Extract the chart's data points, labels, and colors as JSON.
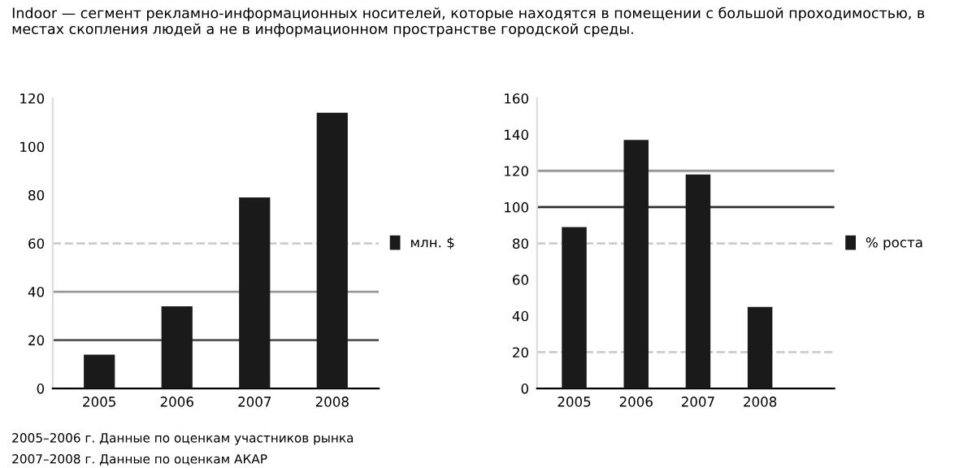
{
  "chart_data": [
    {
      "type": "bar",
      "title": "Indoor — сегмент рекламно-информационных носителей, которые находятся в помещении с большой проходимостью, в местах скопления людей а не в информационном пространстве городской среды.",
      "categories": [
        "2005",
        "2006",
        "2007",
        "2008"
      ],
      "series": [
        {
          "name": "млн. $",
          "color": "#1a1a1a",
          "values": [
            14,
            34,
            79,
            114
          ]
        }
      ],
      "ylim": [
        0,
        120
      ],
      "yticks": [
        0,
        20,
        40,
        60,
        80,
        100,
        120
      ],
      "legend": "right",
      "grid": false,
      "ref_lines": [
        {
          "axis": "y",
          "value": 20,
          "color": "#555555",
          "line_style": "solid"
        },
        {
          "axis": "y",
          "value": 40,
          "color": "#999999",
          "line_style": "solid"
        },
        {
          "axis": "y",
          "value": 60,
          "color": "#cccccc",
          "line_style": "dashed"
        }
      ],
      "annotations": [
        "2005–2006 г. Данные по оценкам участников рынка",
        "2007–2008 г. Данные по оценкам АКАР"
      ]
    },
    {
      "type": "bar",
      "categories": [
        "2005",
        "2006",
        "2007",
        "2008"
      ],
      "series": [
        {
          "name": "% роста",
          "color": "#1a1a1a",
          "values": [
            89,
            137,
            118,
            45
          ]
        }
      ],
      "ylim": [
        0,
        160
      ],
      "yticks": [
        0,
        20,
        40,
        60,
        80,
        100,
        120,
        140,
        160
      ],
      "legend": "right",
      "grid": false,
      "ref_lines": [
        {
          "axis": "y",
          "value": 20,
          "color": "#cccccc",
          "line_style": "dashed"
        },
        {
          "axis": "y",
          "value": 80,
          "color": "#cccccc",
          "line_style": "dashed"
        },
        {
          "axis": "y",
          "value": 100,
          "color": "#333333",
          "line_style": "solid"
        },
        {
          "axis": "y",
          "value": 120,
          "color": "#999999",
          "line_style": "solid"
        }
      ]
    }
  ]
}
